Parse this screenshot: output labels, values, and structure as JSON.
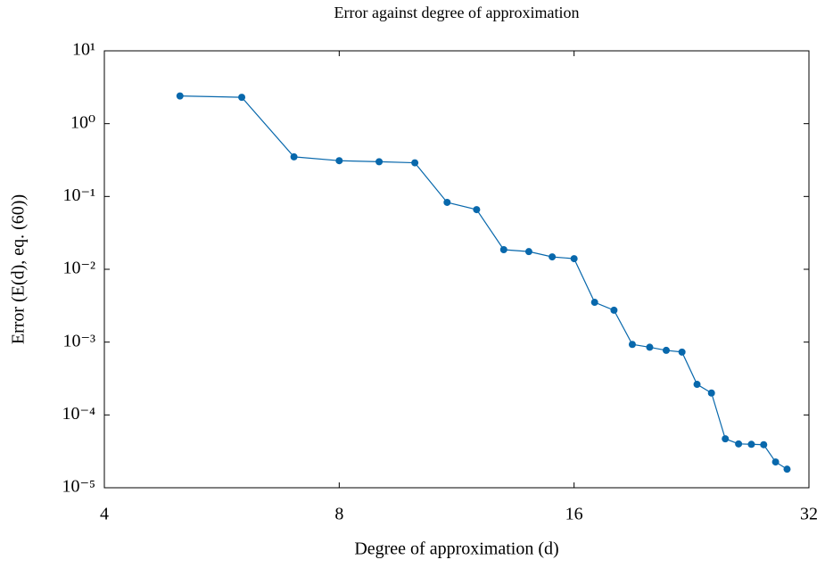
{
  "chart_data": {
    "type": "line",
    "title": "Error against degree of approximation",
    "x_label": "Degree of approximation (d)",
    "y_label": "Error (E(d), eq. (60))",
    "x": [
      5,
      6,
      7,
      8,
      9,
      10,
      11,
      12,
      13,
      14,
      15,
      16,
      17,
      18,
      19,
      20,
      21,
      22,
      23,
      24,
      25,
      26,
      27,
      28,
      29,
      30
    ],
    "series": [
      {
        "name": "E(d)",
        "color": "#0868ac",
        "values": [
          2.4,
          2.3,
          0.35,
          0.31,
          0.3,
          0.29,
          0.083,
          0.066,
          0.0186,
          0.0175,
          0.0148,
          0.014,
          0.00352,
          0.00274,
          0.00093,
          0.00085,
          0.00077,
          0.00073,
          0.000263,
          0.0002,
          4.7e-05,
          4e-05,
          3.95e-05,
          3.9e-05,
          2.26e-05,
          1.8e-05
        ]
      }
    ],
    "xscale": "log",
    "yscale": "log",
    "xlim": [
      4,
      32
    ],
    "ylim": [
      1e-05,
      10
    ],
    "xticks": [
      4,
      8,
      16,
      32
    ],
    "yticks": [
      {
        "value": 10,
        "label": "10¹"
      },
      {
        "value": 1,
        "label": "10⁰"
      },
      {
        "value": 0.1,
        "label": "10⁻¹"
      },
      {
        "value": 0.01,
        "label": "10⁻²"
      },
      {
        "value": 0.001,
        "label": "10⁻³"
      },
      {
        "value": 0.0001,
        "label": "10⁻⁴"
      },
      {
        "value": 1e-05,
        "label": "10⁻⁵"
      }
    ],
    "grid": false
  }
}
